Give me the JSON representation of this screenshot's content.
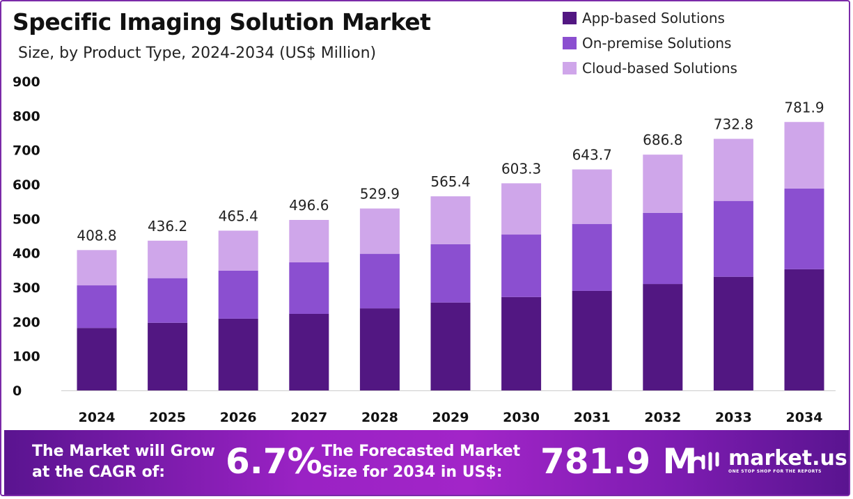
{
  "chart_data": {
    "type": "bar",
    "stacked": true,
    "title": "Specific Imaging Solution Market",
    "subtitle": "Size, by Product Type, 2024-2034 (US$ Million)",
    "categories": [
      "2024",
      "2025",
      "2026",
      "2027",
      "2028",
      "2029",
      "2030",
      "2031",
      "2032",
      "2033",
      "2034"
    ],
    "series": [
      {
        "name": "App-based Solutions",
        "color": "#521782",
        "values": [
          182,
          197,
          209,
          223,
          239,
          256,
          272,
          290,
          310,
          331,
          353
        ]
      },
      {
        "name": "On-premise Solutions",
        "color": "#8b4fd0",
        "values": [
          124,
          130,
          140,
          150,
          159,
          170,
          182,
          195,
          207,
          221,
          235
        ]
      },
      {
        "name": "Cloud-based Solutions",
        "color": "#cfa6ea",
        "values": [
          102.8,
          109.2,
          116.4,
          123.6,
          131.9,
          139.4,
          149.3,
          158.7,
          169.8,
          180.8,
          193.9
        ]
      }
    ],
    "totals": [
      "408.8",
      "436.2",
      "465.4",
      "496.6",
      "529.9",
      "565.4",
      "603.3",
      "643.7",
      "686.8",
      "732.8",
      "781.9"
    ],
    "ylim": [
      0,
      900
    ],
    "yticks": [
      "0",
      "100",
      "200",
      "300",
      "400",
      "500",
      "600",
      "700",
      "800",
      "900"
    ],
    "grid": false,
    "legend_position": "top-right"
  },
  "footer": {
    "cagr_label_1": "The Market will Grow",
    "cagr_label_2": "at the CAGR of:",
    "cagr_value": "6.7%",
    "forecast_label_1": "The Forecasted Market",
    "forecast_label_2": "Size for 2034 in US$:",
    "forecast_value": "781.9 M",
    "logo_name": "market.us",
    "logo_tagline": "ONE STOP SHOP FOR THE REPORTS"
  }
}
